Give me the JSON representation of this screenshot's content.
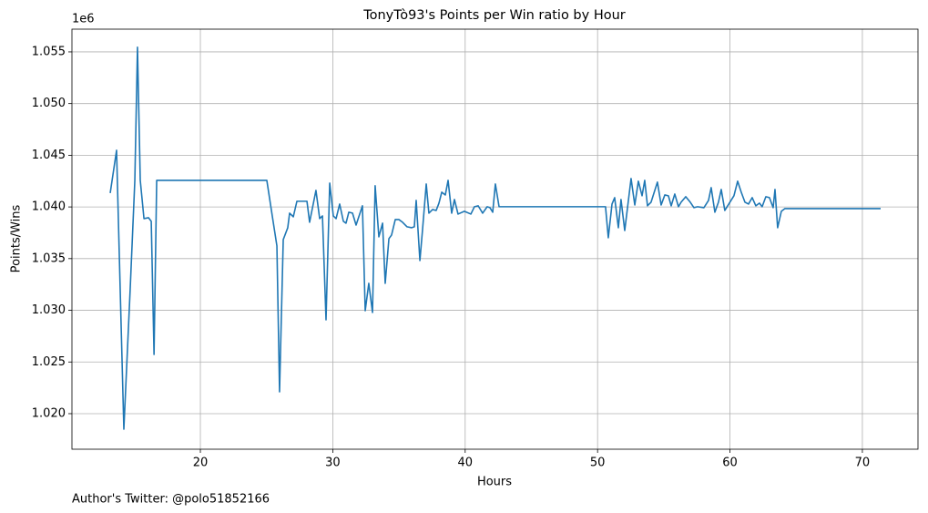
{
  "chart_data": {
    "type": "line",
    "title": "TonyTò93's Points per Win ratio by Hour",
    "x_label": "Hours",
    "y_label": "Points/Wins",
    "y_offset_label": "1e6",
    "footer": "Author's Twitter: @polo51852166",
    "grid": true,
    "xlim": [
      10.3,
      74.2
    ],
    "ylim": [
      1016560,
      1057200
    ],
    "xticks": [
      20,
      30,
      40,
      50,
      60,
      70
    ],
    "yticks": [
      {
        "value": 1020000,
        "label": "1.020"
      },
      {
        "value": 1025000,
        "label": "1.025"
      },
      {
        "value": 1030000,
        "label": "1.030"
      },
      {
        "value": 1035000,
        "label": "1.035"
      },
      {
        "value": 1040000,
        "label": "1.040"
      },
      {
        "value": 1045000,
        "label": "1.045"
      },
      {
        "value": 1050000,
        "label": "1.050"
      },
      {
        "value": 1055000,
        "label": "1.055"
      }
    ],
    "x": [
      13.19,
      13.67,
      14.22,
      14.7,
      15.05,
      15.25,
      15.46,
      15.74,
      16.08,
      16.29,
      16.5,
      16.7,
      25.02,
      25.43,
      25.78,
      25.98,
      26.26,
      26.6,
      26.74,
      27.02,
      27.29,
      28.05,
      28.25,
      28.73,
      29.01,
      29.22,
      29.49,
      29.77,
      30.04,
      30.25,
      30.52,
      30.8,
      31.0,
      31.21,
      31.49,
      31.76,
      32.24,
      32.45,
      32.72,
      33.0,
      33.2,
      33.48,
      33.76,
      33.96,
      34.24,
      34.44,
      34.72,
      34.99,
      35.27,
      35.61,
      35.96,
      36.16,
      36.3,
      36.58,
      36.78,
      37.06,
      37.26,
      37.54,
      37.81,
      38.02,
      38.23,
      38.5,
      38.71,
      38.98,
      39.19,
      39.46,
      39.94,
      40.43,
      40.7,
      40.98,
      41.32,
      41.66,
      41.87,
      42.08,
      42.28,
      42.56,
      50.6,
      50.81,
      51.09,
      51.29,
      51.57,
      51.77,
      52.05,
      52.53,
      52.81,
      53.08,
      53.36,
      53.56,
      53.77,
      54.04,
      54.52,
      54.8,
      55.08,
      55.35,
      55.56,
      55.83,
      56.11,
      56.31,
      56.66,
      57.0,
      57.28,
      57.55,
      58.03,
      58.38,
      58.58,
      58.86,
      59.13,
      59.34,
      59.61,
      60.3,
      60.58,
      60.85,
      61.13,
      61.4,
      61.68,
      61.95,
      62.23,
      62.43,
      62.71,
      62.98,
      63.26,
      63.4,
      63.6,
      63.88,
      64.15,
      71.38
    ],
    "series": [
      {
        "name": "Points/Wins",
        "color": "#1f77b4",
        "values": [
          1041340,
          1045480,
          1018500,
          1032080,
          1042570,
          1055450,
          1042570,
          1038870,
          1038960,
          1038610,
          1025730,
          1042570,
          1042570,
          1039130,
          1036230,
          1022120,
          1036840,
          1037990,
          1039400,
          1039050,
          1040550,
          1040550,
          1038520,
          1041600,
          1038870,
          1039130,
          1029080,
          1042310,
          1039130,
          1038870,
          1040280,
          1038610,
          1038430,
          1039490,
          1039400,
          1038250,
          1040110,
          1029960,
          1032610,
          1029790,
          1042050,
          1037110,
          1038430,
          1032610,
          1036930,
          1037280,
          1038780,
          1038780,
          1038520,
          1038080,
          1037990,
          1038080,
          1040630,
          1034810,
          1037810,
          1042220,
          1039400,
          1039750,
          1039660,
          1040370,
          1041430,
          1041160,
          1042570,
          1039400,
          1040720,
          1039310,
          1039580,
          1039310,
          1040020,
          1040110,
          1039400,
          1040020,
          1039930,
          1039490,
          1042220,
          1040020,
          1040020,
          1037020,
          1040280,
          1040900,
          1037990,
          1040720,
          1037720,
          1042750,
          1040190,
          1042490,
          1041080,
          1042570,
          1040110,
          1040460,
          1042400,
          1040190,
          1041160,
          1041080,
          1040110,
          1041250,
          1040020,
          1040460,
          1040990,
          1040460,
          1039930,
          1040020,
          1039930,
          1040630,
          1041870,
          1039490,
          1040460,
          1041690,
          1039660,
          1041080,
          1042490,
          1041430,
          1040460,
          1040280,
          1040900,
          1040110,
          1040370,
          1040020,
          1040990,
          1040900,
          1039930,
          1041690,
          1037990,
          1039580,
          1039840,
          1039840
        ]
      }
    ]
  }
}
